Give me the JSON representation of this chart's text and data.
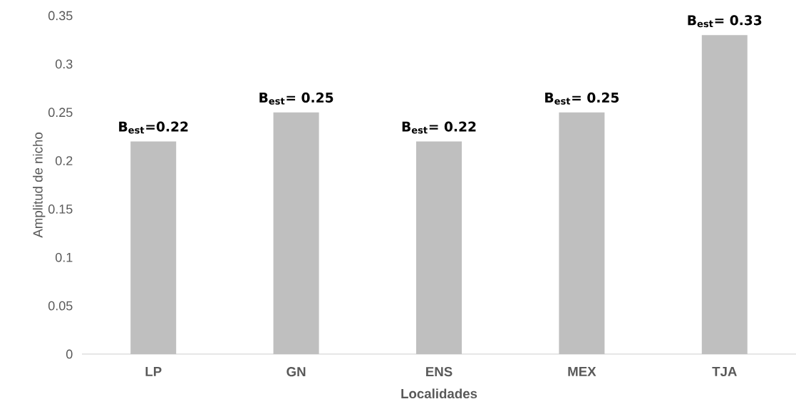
{
  "chart_data": {
    "type": "bar",
    "xlabel": "Localidades",
    "ylabel": "Amplitud de nicho",
    "categories": [
      "LP",
      "GN",
      "ENS",
      "MEX",
      "TJA"
    ],
    "values": [
      0.22,
      0.25,
      0.22,
      0.25,
      0.33
    ],
    "value_labels": [
      "B$_{est}$=0.22",
      "B$_{est}$= 0.25",
      "B$_{est}$= 0.22",
      "B$_{est}$= 0.25",
      "B$_{est}$= 0.33"
    ],
    "color": "#bfbfbf",
    "ylim": [
      0,
      0.35
    ],
    "yticks": [
      0,
      0.05,
      0.1,
      0.15,
      0.2,
      0.25,
      0.3,
      0.35
    ]
  }
}
